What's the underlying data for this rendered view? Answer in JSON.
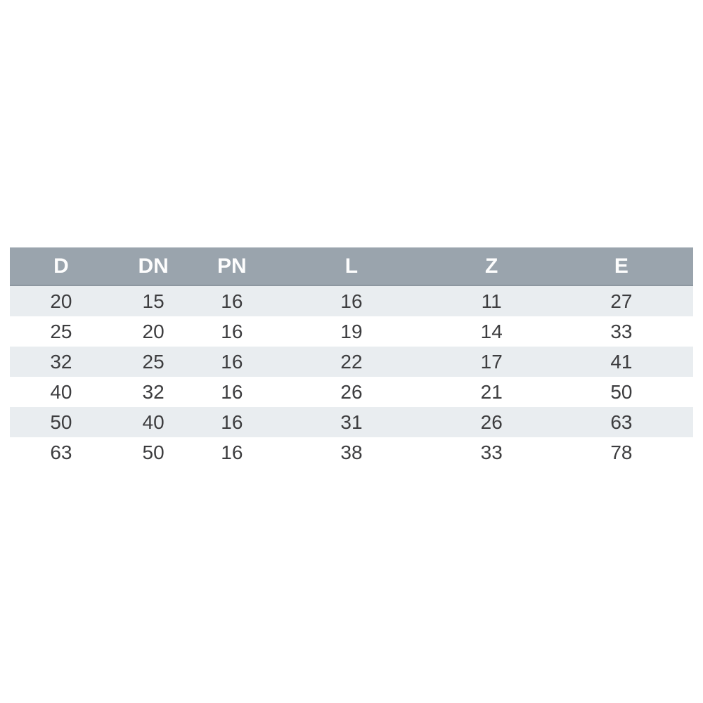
{
  "table": {
    "columns": [
      "D",
      "DN",
      "PN",
      "L",
      "Z",
      "E"
    ],
    "rows": [
      [
        "20",
        "15",
        "16",
        "16",
        "11",
        "27"
      ],
      [
        "25",
        "20",
        "16",
        "19",
        "14",
        "33"
      ],
      [
        "32",
        "25",
        "16",
        "22",
        "17",
        "41"
      ],
      [
        "40",
        "32",
        "16",
        "26",
        "21",
        "50"
      ],
      [
        "50",
        "40",
        "16",
        "31",
        "26",
        "63"
      ],
      [
        "63",
        "50",
        "16",
        "38",
        "33",
        "78"
      ]
    ]
  },
  "chart_data": {
    "type": "table",
    "columns": [
      "D",
      "DN",
      "PN",
      "L",
      "Z",
      "E"
    ],
    "rows": [
      [
        20,
        15,
        16,
        16,
        11,
        27
      ],
      [
        25,
        20,
        16,
        19,
        14,
        33
      ],
      [
        32,
        25,
        16,
        22,
        17,
        41
      ],
      [
        40,
        32,
        16,
        26,
        21,
        50
      ],
      [
        50,
        40,
        16,
        31,
        26,
        63
      ],
      [
        63,
        50,
        16,
        38,
        33,
        78
      ]
    ],
    "layout_hints": {
      "header_position": "top",
      "row_striping": "odd-rows-shaded",
      "text_align": "center"
    }
  },
  "colors": {
    "header_bg": "#9aa4ad",
    "header_text": "#fdfdfd",
    "row_shaded": "#e9edf0",
    "row_white": "#ffffff",
    "cell_text": "#3d3d3f"
  }
}
